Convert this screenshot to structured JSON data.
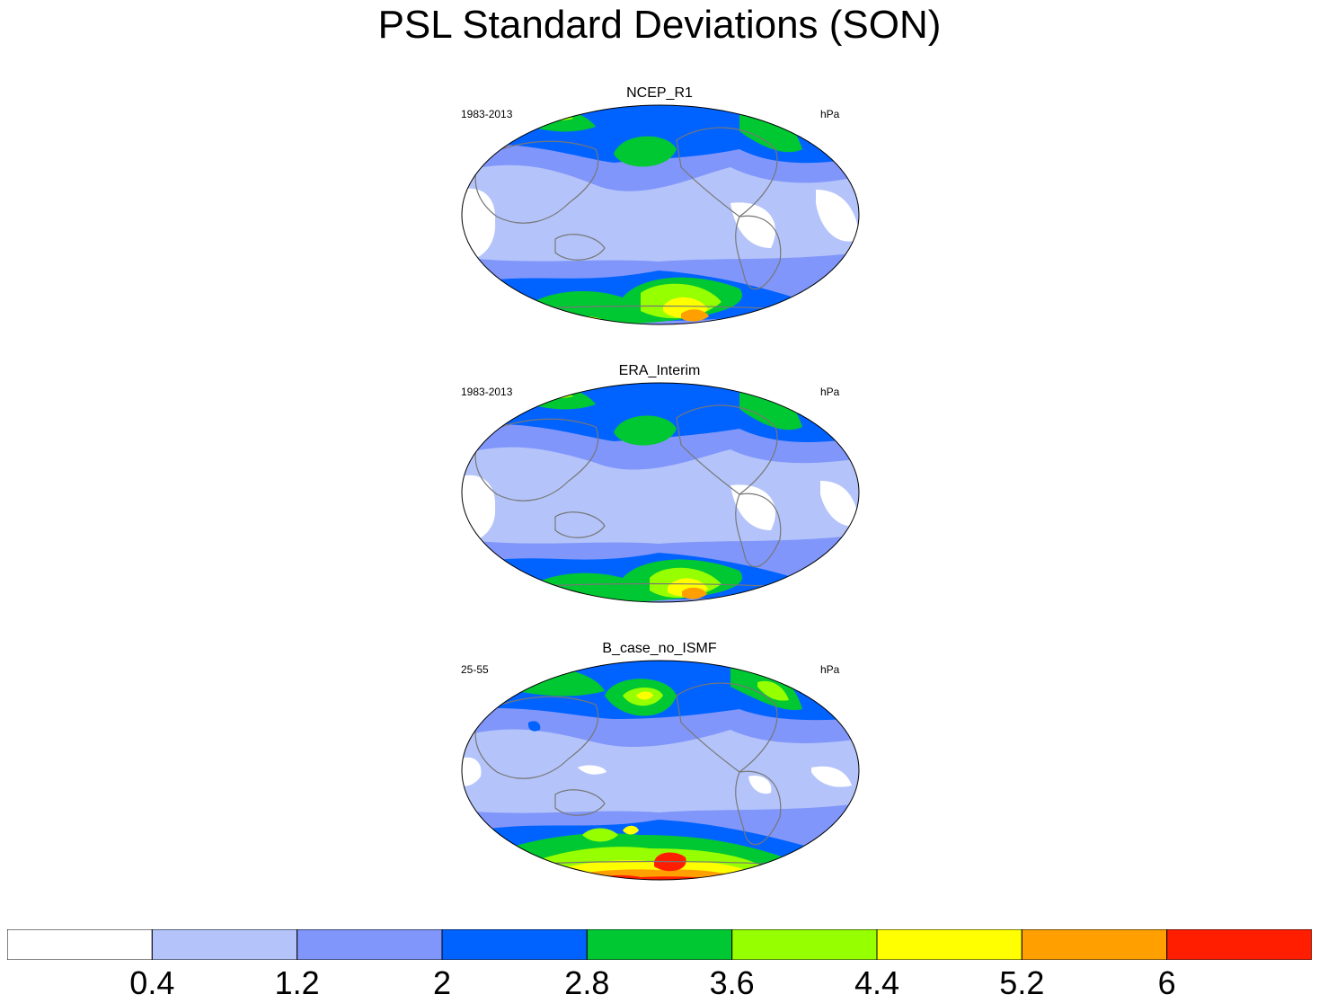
{
  "title": "PSL Standard Deviations (SON)",
  "panels": [
    {
      "title": "NCEP_R1",
      "period": "1983-2013",
      "units": "hPa"
    },
    {
      "title": "ERA_Interim",
      "period": "1983-2013",
      "units": "hPa"
    },
    {
      "title": "B_case_no_ISMF",
      "period": "25-55",
      "units": "hPa"
    }
  ],
  "colorbar": {
    "labels": [
      "0.4",
      "1.2",
      "2",
      "2.8",
      "3.6",
      "4.4",
      "5.2",
      "6"
    ],
    "colors": [
      "#ffffff",
      "#b4c4fa",
      "#8096fa",
      "#0062ff",
      "#00c832",
      "#96ff00",
      "#ffff00",
      "#ffa000",
      "#ff1e00"
    ]
  }
}
